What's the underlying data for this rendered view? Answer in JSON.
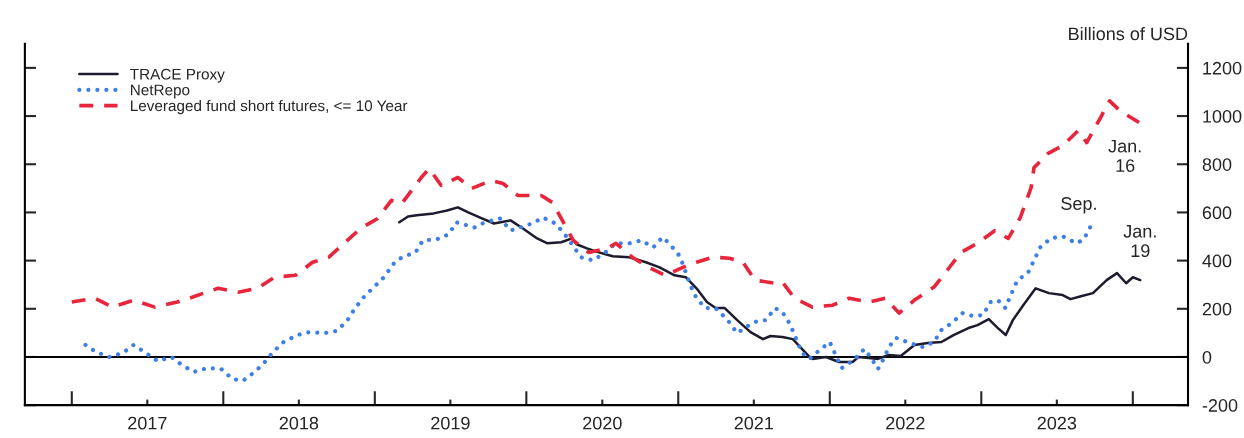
{
  "chart_data": {
    "type": "line",
    "ylabel": "Billions of USD",
    "xlim": [
      "2016-09-10",
      "2024-05-13"
    ],
    "xticks": [
      {
        "value": "2017-01-01",
        "label": null
      },
      {
        "value": "2017-07-02",
        "label": "2017"
      },
      {
        "value": "2018-01-01",
        "label": null
      },
      {
        "value": "2018-07-02",
        "label": "2018"
      },
      {
        "value": "2019-01-01",
        "label": null
      },
      {
        "value": "2019-07-02",
        "label": "2019"
      },
      {
        "value": "2020-01-01",
        "label": null
      },
      {
        "value": "2020-07-02",
        "label": "2020"
      },
      {
        "value": "2021-01-01",
        "label": null
      },
      {
        "value": "2021-07-02",
        "label": "2021"
      },
      {
        "value": "2022-01-01",
        "label": null
      },
      {
        "value": "2022-07-02",
        "label": "2022"
      },
      {
        "value": "2023-01-01",
        "label": null
      },
      {
        "value": "2023-07-02",
        "label": "2023"
      },
      {
        "value": "2024-01-01",
        "label": null
      }
    ],
    "ylim": [
      -200,
      1300
    ],
    "yticks": [
      -200,
      0,
      200,
      400,
      600,
      800,
      1000,
      1200
    ],
    "legend": "top left",
    "grid": false,
    "ref_lines": [
      {
        "axis": "y",
        "value": 0,
        "color": "#000000",
        "line_style": "solid"
      }
    ],
    "annotations": [
      {
        "text": "Jan.\n16",
        "x": "2024-01-16",
        "y": 973
      },
      {
        "text": "Sep.",
        "x": "2023-09-20",
        "y": 538
      },
      {
        "text": "Jan.\n19",
        "x": "2024-01-19",
        "y": 319
      }
    ],
    "series": [
      {
        "name": "TRACE Proxy",
        "color": "#1c1c2e",
        "line_style": "solid",
        "x": [
          "2019-03-01",
          "2019-03-22",
          "2019-04-12",
          "2019-05-23",
          "2019-06-24",
          "2019-07-20",
          "2019-08-14",
          "2019-09-16",
          "2019-10-15",
          "2019-11-24",
          "2019-12-23",
          "2020-01-27",
          "2020-02-21",
          "2020-03-25",
          "2020-04-20",
          "2020-05-01",
          "2020-05-26",
          "2020-06-24",
          "2020-07-27",
          "2020-09-05",
          "2020-10-15",
          "2020-11-17",
          "2020-12-23",
          "2021-01-19",
          "2021-02-14",
          "2021-03-11",
          "2021-04-01",
          "2021-04-23",
          "2021-05-23",
          "2021-06-24",
          "2021-07-24",
          "2021-08-11",
          "2021-09-09",
          "2021-10-04",
          "2021-10-22",
          "2021-11-13",
          "2021-11-20",
          "2021-12-23",
          "2022-01-23",
          "2022-02-25",
          "2022-03-11",
          "2022-04-05",
          "2022-04-27",
          "2022-05-23",
          "2022-06-21",
          "2022-07-24",
          "2022-08-25",
          "2022-09-27",
          "2022-10-26",
          "2022-12-01",
          "2022-12-23",
          "2023-01-19",
          "2023-02-10",
          "2023-03-01",
          "2023-03-18",
          "2023-04-12",
          "2023-05-12",
          "2023-06-13",
          "2023-07-16",
          "2023-08-04",
          "2023-08-29",
          "2023-09-27",
          "2023-10-30",
          "2023-11-24",
          "2023-12-16",
          "2024-01-01",
          "2024-01-19"
        ],
        "values": [
          559,
          583,
          588,
          596,
          608,
          621,
          600,
          575,
          554,
          567,
          534,
          492,
          472,
          476,
          492,
          468,
          451,
          434,
          418,
          414,
          393,
          372,
          339,
          331,
          285,
          228,
          203,
          203,
          153,
          103,
          74,
          87,
          83,
          74,
          41,
          0,
          -8,
          0,
          -21,
          -21,
          0,
          -4,
          -8,
          8,
          4,
          50,
          58,
          62,
          91,
          120,
          132,
          157,
          120,
          91,
          153,
          215,
          285,
          265,
          257,
          240,
          252,
          265,
          319,
          348,
          306,
          331,
          319
        ]
      },
      {
        "name": "NetRepo",
        "color": "#3d7fe6",
        "line_style": "dotted",
        "x": [
          "2017-02-03",
          "2017-02-28",
          "2017-04-01",
          "2017-05-04",
          "2017-05-30",
          "2017-06-28",
          "2017-07-27",
          "2017-08-29",
          "2017-09-23",
          "2017-10-22",
          "2017-11-24",
          "2017-12-27",
          "2018-01-23",
          "2018-02-17",
          "2018-03-18",
          "2018-04-09",
          "2018-05-01",
          "2018-05-26",
          "2018-06-28",
          "2018-07-27",
          "2018-09-02",
          "2018-10-01",
          "2018-10-26",
          "2018-11-13",
          "2018-12-05",
          "2018-12-27",
          "2019-01-23",
          "2019-02-14",
          "2019-03-07",
          "2019-04-09",
          "2019-04-27",
          "2019-05-30",
          "2019-06-28",
          "2019-07-16",
          "2019-08-29",
          "2019-09-23",
          "2019-10-30",
          "2019-11-24",
          "2020-01-15",
          "2020-02-10",
          "2020-03-11",
          "2020-04-01",
          "2020-05-12",
          "2020-06-10",
          "2020-07-09",
          "2020-08-04",
          "2020-09-05",
          "2020-10-04",
          "2020-11-02",
          "2020-11-24",
          "2020-12-12",
          "2021-01-05",
          "2021-01-30",
          "2021-02-14",
          "2021-03-07",
          "2021-04-01",
          "2021-04-30",
          "2021-05-23",
          "2021-07-02",
          "2021-07-31",
          "2021-08-22",
          "2021-09-09",
          "2021-09-27",
          "2021-10-11",
          "2021-10-26",
          "2021-11-13",
          "2021-12-05",
          "2022-01-01",
          "2022-01-15",
          "2022-01-30",
          "2022-02-28",
          "2022-03-25",
          "2022-04-09",
          "2022-04-27",
          "2022-05-12",
          "2022-05-23",
          "2022-06-10",
          "2022-07-13",
          "2022-08-14",
          "2022-09-09",
          "2022-09-27",
          "2022-10-22",
          "2022-11-17",
          "2022-12-12",
          "2023-01-05",
          "2023-01-23",
          "2023-02-10",
          "2023-02-28",
          "2023-03-14",
          "2023-03-29",
          "2023-04-23",
          "2023-05-08",
          "2023-05-23",
          "2023-06-17",
          "2023-07-16",
          "2023-08-18",
          "2023-09-05",
          "2023-09-20"
        ],
        "values": [
          50,
          21,
          0,
          17,
          50,
          17,
          -17,
          0,
          -33,
          -62,
          -46,
          -50,
          -91,
          -99,
          -62,
          -25,
          21,
          62,
          91,
          103,
          99,
          108,
          149,
          199,
          248,
          285,
          331,
          385,
          414,
          434,
          484,
          488,
          509,
          559,
          538,
          559,
          575,
          525,
          554,
          579,
          554,
          513,
          414,
          401,
          434,
          472,
          472,
          484,
          455,
          497,
          468,
          418,
          298,
          244,
          203,
          203,
          153,
          99,
          145,
          153,
          203,
          186,
          137,
          79,
          17,
          -8,
          25,
          62,
          8,
          -46,
          -12,
          33,
          0,
          -50,
          -4,
          41,
          79,
          58,
          41,
          62,
          112,
          141,
          182,
          170,
          174,
          228,
          236,
          203,
          261,
          319,
          348,
          401,
          455,
          492,
          501,
          472,
          488,
          538
        ]
      },
      {
        "name": "Leveraged fund short futures, <= 10 Year",
        "color": "#e8253a",
        "line_style": "dashed",
        "x": [
          "2017-01-01",
          "2017-02-25",
          "2017-04-09",
          "2017-05-30",
          "2017-07-20",
          "2017-09-12",
          "2017-10-11",
          "2017-12-19",
          "2018-02-06",
          "2018-03-25",
          "2018-05-04",
          "2018-06-24",
          "2018-08-04",
          "2018-09-12",
          "2018-10-19",
          "2018-11-28",
          "2019-01-08",
          "2019-02-10",
          "2019-03-07",
          "2019-04-23",
          "2019-05-12",
          "2019-06-10",
          "2019-07-20",
          "2019-08-22",
          "2019-10-08",
          "2019-11-06",
          "2019-12-12",
          "2020-02-06",
          "2020-03-04",
          "2020-04-01",
          "2020-04-23",
          "2020-05-30",
          "2020-07-13",
          "2020-08-04",
          "2020-09-12",
          "2020-10-22",
          "2020-12-01",
          "2021-01-12",
          "2021-02-14",
          "2021-03-25",
          "2021-05-04",
          "2021-06-06",
          "2021-07-05",
          "2021-08-22",
          "2021-09-09",
          "2021-10-08",
          "2021-11-20",
          "2022-01-08",
          "2022-02-17",
          "2022-04-05",
          "2022-05-15",
          "2022-06-17",
          "2022-07-24",
          "2022-09-09",
          "2022-10-11",
          "2022-11-13",
          "2022-12-23",
          "2023-02-03",
          "2023-03-07",
          "2023-04-05",
          "2023-05-01",
          "2023-05-08",
          "2023-06-10",
          "2023-07-16",
          "2023-08-22",
          "2023-09-12",
          "2023-10-15",
          "2023-11-06",
          "2023-12-01",
          "2024-01-16"
        ],
        "values": [
          228,
          244,
          207,
          236,
          207,
          228,
          244,
          285,
          269,
          285,
          331,
          339,
          393,
          414,
          472,
          534,
          575,
          650,
          637,
          745,
          782,
          712,
          745,
          699,
          732,
          720,
          670,
          670,
          641,
          554,
          484,
          434,
          451,
          472,
          414,
          372,
          339,
          372,
          393,
          414,
          410,
          393,
          319,
          306,
          310,
          244,
          207,
          215,
          244,
          228,
          244,
          182,
          236,
          290,
          360,
          434,
          472,
          525,
          492,
          579,
          703,
          786,
          844,
          877,
          939,
          890,
          993,
          1063,
          1022,
          973
        ]
      }
    ]
  }
}
